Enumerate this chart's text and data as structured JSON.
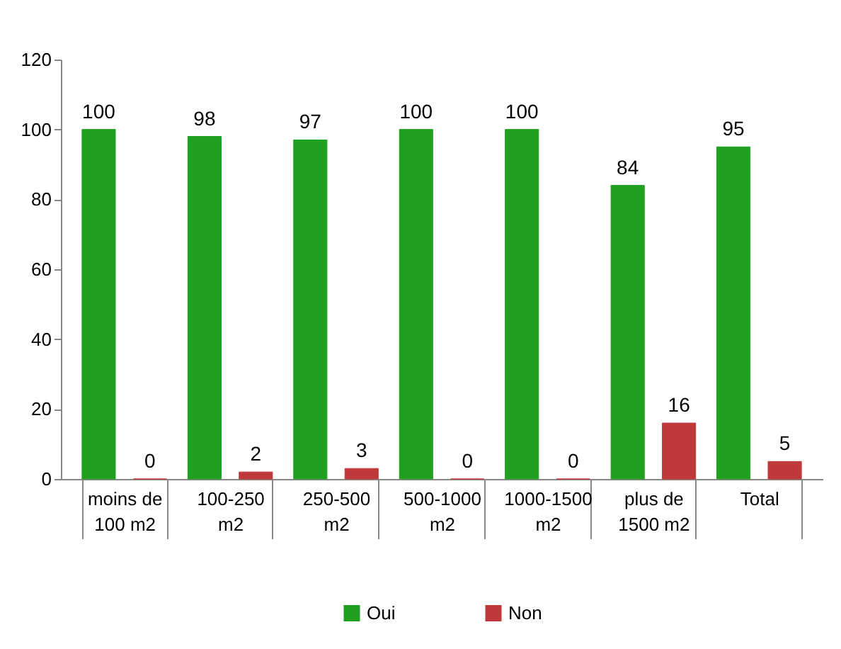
{
  "chart_data": {
    "type": "bar",
    "categories": [
      "moins de 100 m2",
      "100-250 m2",
      "250-500 m2",
      "500-1000 m2",
      "1000-1500 m2",
      "plus de 1500 m2",
      "Total"
    ],
    "series": [
      {
        "name": "Oui",
        "color": "#1fa01f",
        "values": [
          100,
          98,
          97,
          100,
          100,
          84,
          95
        ]
      },
      {
        "name": "Non",
        "color": "#c0393a",
        "values": [
          0,
          2,
          3,
          0,
          0,
          16,
          5
        ]
      }
    ],
    "ylim": [
      0,
      120
    ],
    "yticks": [
      0,
      20,
      40,
      60,
      80,
      100,
      120
    ],
    "grid": false,
    "legend": "bottom",
    "data_labels": true
  }
}
